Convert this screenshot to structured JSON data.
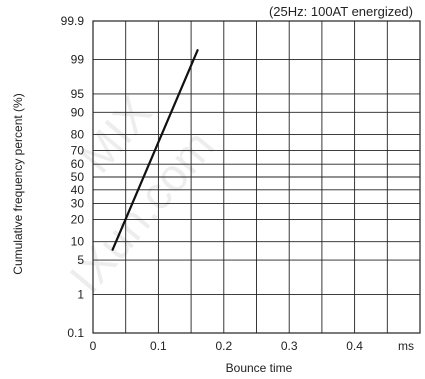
{
  "chart_data": {
    "type": "line",
    "title": "",
    "annotation": "(25Hz: 100AT energized)",
    "xlabel": "Bounce time",
    "ylabel": "Cumulative frequency percent (%)",
    "x_unit_label": "ms",
    "x_ticks": [
      {
        "value": 0,
        "label": "0"
      },
      {
        "value": 0.1,
        "label": "0.1"
      },
      {
        "value": 0.2,
        "label": "0.2"
      },
      {
        "value": 0.3,
        "label": "0.3"
      },
      {
        "value": 0.4,
        "label": "0.4"
      }
    ],
    "xlim": [
      0,
      0.5
    ],
    "y_scale": "normal-probability",
    "y_ticks": [
      {
        "value": 0.1,
        "label": "0.1"
      },
      {
        "value": 1,
        "label": "1"
      },
      {
        "value": 5,
        "label": "5"
      },
      {
        "value": 10,
        "label": "10"
      },
      {
        "value": 20,
        "label": "20"
      },
      {
        "value": 30,
        "label": "30"
      },
      {
        "value": 40,
        "label": "40"
      },
      {
        "value": 50,
        "label": "50"
      },
      {
        "value": 60,
        "label": "60"
      },
      {
        "value": 70,
        "label": "70"
      },
      {
        "value": 80,
        "label": "80"
      },
      {
        "value": 90,
        "label": "90"
      },
      {
        "value": 95,
        "label": "95"
      },
      {
        "value": 99,
        "label": "99"
      },
      {
        "value": 99.9,
        "label": "99.9"
      }
    ],
    "ylim": [
      0.1,
      99.9
    ],
    "grid": true,
    "series": [
      {
        "values": [
          {
            "x": 0.03,
            "y": 7.5
          },
          {
            "x": 0.16,
            "y": 99.4
          }
        ]
      }
    ]
  },
  "watermark": "MIX\nIXun.com"
}
